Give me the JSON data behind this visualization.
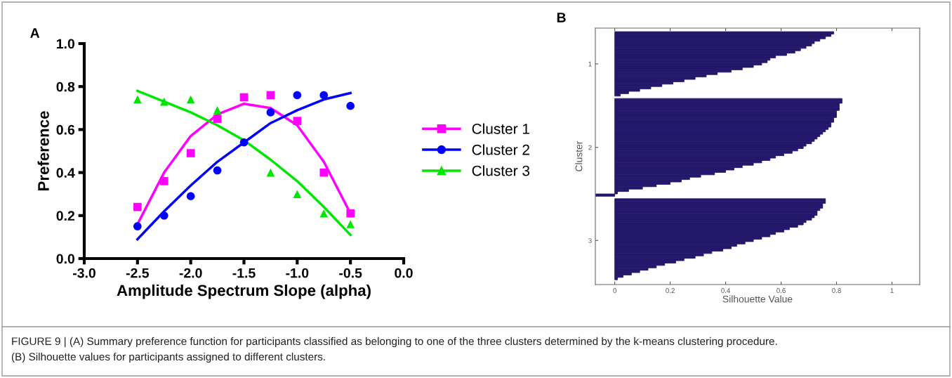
{
  "chart_data": [
    {
      "type": "scatter",
      "title": "A",
      "xlabel": "Amplitude Spectrum Slope (alpha)",
      "ylabel": "Preference",
      "xlim": [
        -3.0,
        0.0
      ],
      "xticks": [
        {
          "value": -3.0,
          "label": "-3.0"
        },
        {
          "value": -2.5,
          "label": "-2.5"
        },
        {
          "value": -2.0,
          "label": "-2.0"
        },
        {
          "value": -1.5,
          "label": "-1.5"
        },
        {
          "value": -1.0,
          "label": "-1.0"
        },
        {
          "value": -0.5,
          "label": "-0.5"
        },
        {
          "value": 0.0,
          "label": "0.0"
        }
      ],
      "ylim": [
        0.0,
        1.0
      ],
      "yticks": [
        {
          "value": 0.0,
          "label": "0.0"
        },
        {
          "value": 0.2,
          "label": "0.2"
        },
        {
          "value": 0.4,
          "label": "0.4"
        },
        {
          "value": 0.6,
          "label": "0.6"
        },
        {
          "value": 0.8,
          "label": "0.8"
        },
        {
          "value": 1.0,
          "label": "1.0"
        }
      ],
      "x": [
        -2.5,
        -2.25,
        -2.0,
        -1.75,
        -1.5,
        -1.25,
        -1.0,
        -0.75,
        -0.5
      ],
      "legend": "right",
      "grid": false,
      "series": [
        {
          "type": "line",
          "color": "#ff00ff",
          "values": [
            0.16,
            0.4,
            0.57,
            0.67,
            0.72,
            0.7,
            0.62,
            0.45,
            0.21
          ]
        },
        {
          "type": "line",
          "color": "#0000ff",
          "values": [
            0.09,
            0.22,
            0.34,
            0.45,
            0.54,
            0.63,
            0.69,
            0.74,
            0.77
          ]
        },
        {
          "type": "line",
          "color": "#00e600",
          "values": [
            0.78,
            0.73,
            0.68,
            0.62,
            0.55,
            0.46,
            0.36,
            0.24,
            0.11
          ]
        },
        {
          "type": "scatter",
          "name": "Cluster 1",
          "marker": "square",
          "color": "#ff00ff",
          "values": [
            0.24,
            0.36,
            0.49,
            0.65,
            0.75,
            0.76,
            0.64,
            0.4,
            0.21
          ]
        },
        {
          "type": "scatter",
          "name": "Cluster 2",
          "marker": "circle",
          "color": "#0000ff",
          "values": [
            0.15,
            0.2,
            0.29,
            0.41,
            0.54,
            0.68,
            0.76,
            0.76,
            0.71
          ]
        },
        {
          "type": "scatter",
          "name": "Cluster 3",
          "marker": "triangle",
          "color": "#00e600",
          "values": [
            0.74,
            0.73,
            0.74,
            0.69,
            null,
            0.4,
            0.3,
            0.21,
            0.16
          ]
        }
      ],
      "annotations": [
        "FIGURE 9 | (A) Summary preference function for participants classified as belonging to one of the three clusters determined by the k-means clustering procedure.",
        "(B) Silhouette values for participants assigned to different clusters."
      ]
    },
    {
      "type": "bar",
      "orientation": "horizontal",
      "title": "B",
      "xlabel": "Silhouette Value",
      "ylabel": "Cluster",
      "color": "#24186b",
      "grid": false,
      "xlim": [
        -0.07,
        1.1
      ],
      "xticks": [
        0,
        0.2,
        0.4,
        0.6,
        0.8,
        1
      ],
      "categories": [
        null,
        null,
        null,
        null,
        null,
        null,
        null,
        null,
        null,
        null,
        null,
        null,
        null,
        "1",
        null,
        null,
        null,
        null,
        null,
        null,
        null,
        null,
        null,
        null,
        null,
        null,
        null,
        null,
        null,
        null,
        null,
        null,
        null,
        null,
        null,
        null,
        null,
        null,
        null,
        null,
        null,
        null,
        null,
        null,
        null,
        null,
        null,
        null,
        "2",
        null,
        null,
        null,
        null,
        null,
        null,
        null,
        null,
        null,
        null,
        null,
        null,
        null,
        null,
        null,
        null,
        null,
        null,
        null,
        null,
        null,
        null,
        null,
        null,
        null,
        null,
        null,
        null,
        null,
        null,
        null,
        null,
        null,
        null,
        null,
        null,
        null,
        null,
        "3",
        null,
        null,
        null,
        null,
        null,
        null,
        null,
        null,
        null,
        null,
        null,
        null,
        null,
        null,
        null,
        null
      ],
      "values": [
        0.79,
        0.78,
        0.76,
        0.74,
        0.72,
        0.71,
        0.69,
        0.67,
        0.65,
        0.62,
        0.58,
        0.56,
        0.55,
        0.53,
        0.5,
        0.46,
        0.42,
        0.37,
        0.33,
        0.29,
        0.25,
        0.21,
        0.17,
        0.13,
        0.09,
        0.05,
        0.02,
        null,
        0.82,
        0.82,
        0.81,
        0.81,
        0.81,
        0.8,
        0.8,
        0.8,
        0.79,
        0.79,
        0.78,
        0.78,
        0.77,
        0.76,
        0.75,
        0.74,
        0.73,
        0.72,
        0.71,
        0.69,
        0.68,
        0.66,
        0.64,
        0.61,
        0.58,
        0.56,
        0.53,
        0.5,
        0.46,
        0.43,
        0.4,
        0.36,
        0.31,
        0.27,
        0.24,
        0.2,
        0.15,
        0.1,
        0.05,
        0.01,
        -0.07,
        null,
        0.76,
        0.76,
        0.75,
        0.75,
        0.74,
        0.73,
        0.73,
        0.72,
        0.71,
        0.69,
        0.68,
        0.66,
        0.63,
        0.61,
        0.58,
        0.56,
        0.53,
        0.5,
        0.47,
        0.44,
        0.42,
        0.39,
        0.35,
        0.32,
        0.29,
        0.25,
        0.22,
        0.18,
        0.15,
        0.12,
        0.09,
        0.06,
        0.03,
        0.01
      ]
    }
  ]
}
